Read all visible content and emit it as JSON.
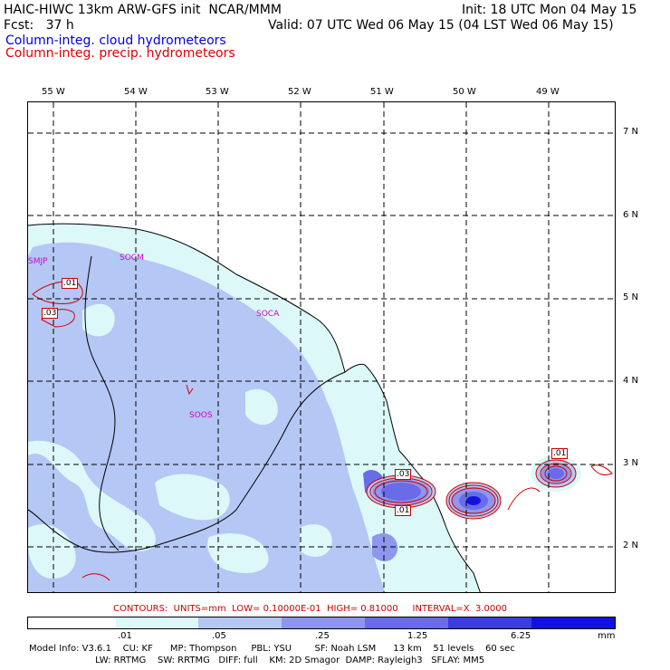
{
  "header": {
    "line1_left": "HAIC-HIWC 13km ARW-GFS init  NCAR/MMM",
    "line1_right": "Init: 18 UTC Mon 04 May 15",
    "line2_left": "Fcst:   37 h",
    "line2_right": "Valid: 07 UTC Wed 06 May 15 (04 LST Wed 06 May 15)",
    "field1": "Column-integ. cloud hydrometeors",
    "field2": "Column-integ. precip. hydrometeors"
  },
  "colors": {
    "field1": "#0000dd",
    "field2": "#dd0000",
    "level1": "#ddf8f8",
    "level2": "#b5c7f4",
    "level3": "#8e96ee",
    "level4": "#6a6be8",
    "level5": "#3c3ce4",
    "level6": "#1212e0",
    "contour": "#cc0000",
    "station": "#d000d0"
  },
  "map": {
    "lon_labels": [
      "55 W",
      "54 W",
      "53 W",
      "52 W",
      "51 W",
      "50 W",
      "49 W"
    ],
    "lat_labels": [
      "7 N",
      "6 N",
      "5 N",
      "4 N",
      "3 N",
      "2 N"
    ],
    "stations": [
      "SMJP",
      "SOCM",
      "SOCA",
      "SOOS"
    ],
    "contour_labels": [
      ".01",
      ".03",
      ".03",
      ".01",
      ".01"
    ]
  },
  "contours_info": "CONTOURS:  UNITS=mm  LOW= 0.10000E-01  HIGH= 0.81000     INTERVAL=X  3.0000",
  "colorbar": {
    "ticks": [
      ".01",
      ".05",
      ".25",
      "1.25",
      "6.25"
    ],
    "unit": "mm"
  },
  "model_info": {
    "line1": "Model Info: V3.6.1    CU: KF      MP: Thompson     PBL: YSU        SF: Noah LSM      13 km    51 levels    60 sec",
    "line2": "                       LW: RRTMG    SW: RRTMG   DIFF: full    KM: 2D Smagor  DAMP: Rayleigh3   SFLAY: MM5"
  }
}
